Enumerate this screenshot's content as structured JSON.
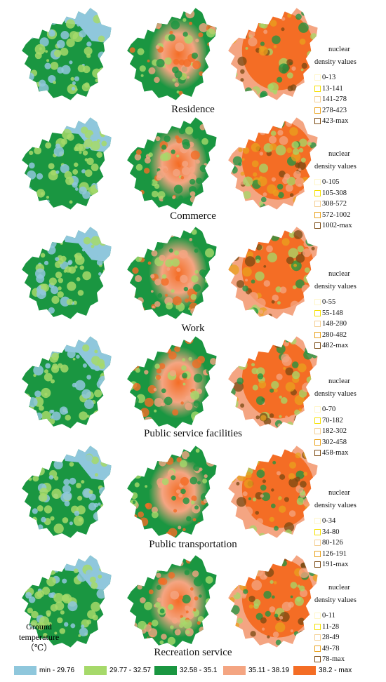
{
  "rows": [
    {
      "title": "Residence",
      "legend_line1": "nuclear",
      "legend_line2": "density values",
      "classes": [
        "0-13",
        "13-141",
        "141-278",
        "278-423",
        "423-max"
      ]
    },
    {
      "title": "Commerce",
      "legend_line1": "nuclear",
      "legend_line2": "density values",
      "classes": [
        "0-105",
        "105-308",
        "308-572",
        "572-1002",
        "1002-max"
      ]
    },
    {
      "title": "Work",
      "legend_line1": "nuclear",
      "legend_line2": "density values",
      "classes": [
        "0-55",
        "55-148",
        "148-280",
        "280-482",
        "482-max"
      ]
    },
    {
      "title": "Public service facilities",
      "legend_line1": "nuclear",
      "legend_line2": "density values",
      "classes": [
        "0-70",
        "70-182",
        "182-302",
        "302-458",
        "458-max"
      ]
    },
    {
      "title": "Public transportation",
      "legend_line1": "nuclear",
      "legend_line2": "density values",
      "classes": [
        "0-34",
        "34-80",
        "80-126",
        "126-191",
        "191-max"
      ]
    },
    {
      "title": "Recreation service",
      "legend_line1": "nuclear",
      "legend_line2": "density values",
      "classes": [
        "0-11",
        "11-28",
        "28-49",
        "49-78",
        "78-max"
      ]
    }
  ],
  "density_swatch_colors": [
    "#fff6c8",
    "#f5e000",
    "#f4cf93",
    "#e9a21d",
    "#7a4a12"
  ],
  "ground_temperature": {
    "label": "Ground temperature",
    "unit": "（℃）",
    "classes": [
      {
        "label": "min  - 29.76",
        "color": "#8fc7dc"
      },
      {
        "label": "29.77 - 32.57",
        "color": "#a6d96a"
      },
      {
        "label": "32.58 - 35.1",
        "color": "#1a9641"
      },
      {
        "label": "35.11 - 38.19",
        "color": "#f4a582"
      },
      {
        "label": "38.2 -  max",
        "color": "#f46d25"
      }
    ]
  }
}
